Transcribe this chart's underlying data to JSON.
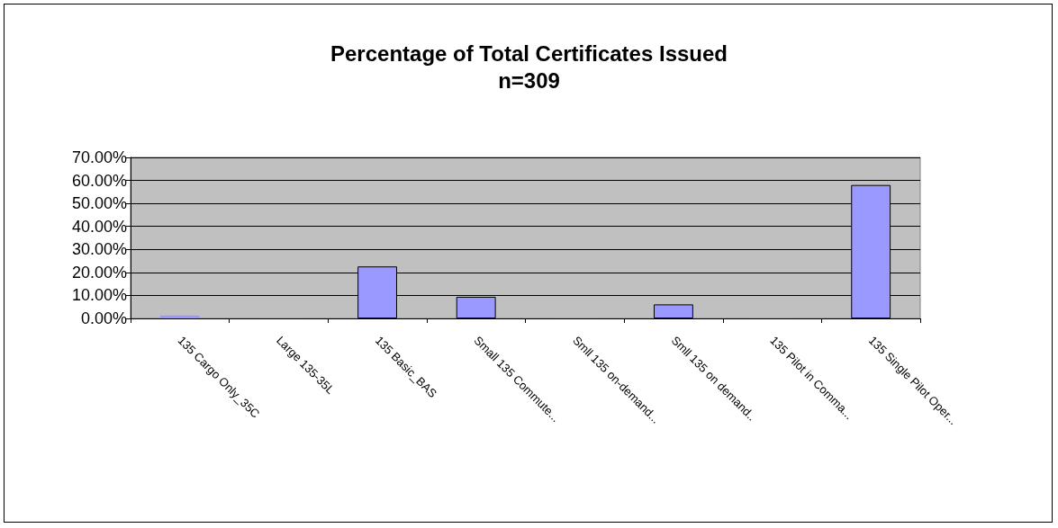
{
  "chart_data": {
    "type": "bar",
    "title": "Percentage of Total Certificates Issued",
    "subtitle": "n=309",
    "categories": [
      "135 Cargo Only_35C",
      "Large 135-35L",
      "135 Basic_BAS",
      "Small 135 Commute...",
      "Smll 135 on-demand...",
      "Smll 135 on demand..",
      "135 Pilot in Comma...",
      "135 Single Pilot Oper..."
    ],
    "values": [
      1.3,
      0.3,
      22.6,
      9.4,
      0.3,
      6.1,
      0.3,
      58.0
    ],
    "color": "#9999ff",
    "ylim": [
      0,
      70
    ],
    "yticks": [
      {
        "value": 0,
        "label": "0.00%"
      },
      {
        "value": 10,
        "label": "10.00%"
      },
      {
        "value": 20,
        "label": "20.00%"
      },
      {
        "value": 30,
        "label": "30.00%"
      },
      {
        "value": 40,
        "label": "40.00%"
      },
      {
        "value": 50,
        "label": "50.00%"
      },
      {
        "value": 60,
        "label": "60.00%"
      },
      {
        "value": 70,
        "label": "70.00%"
      }
    ],
    "grid": "y"
  }
}
